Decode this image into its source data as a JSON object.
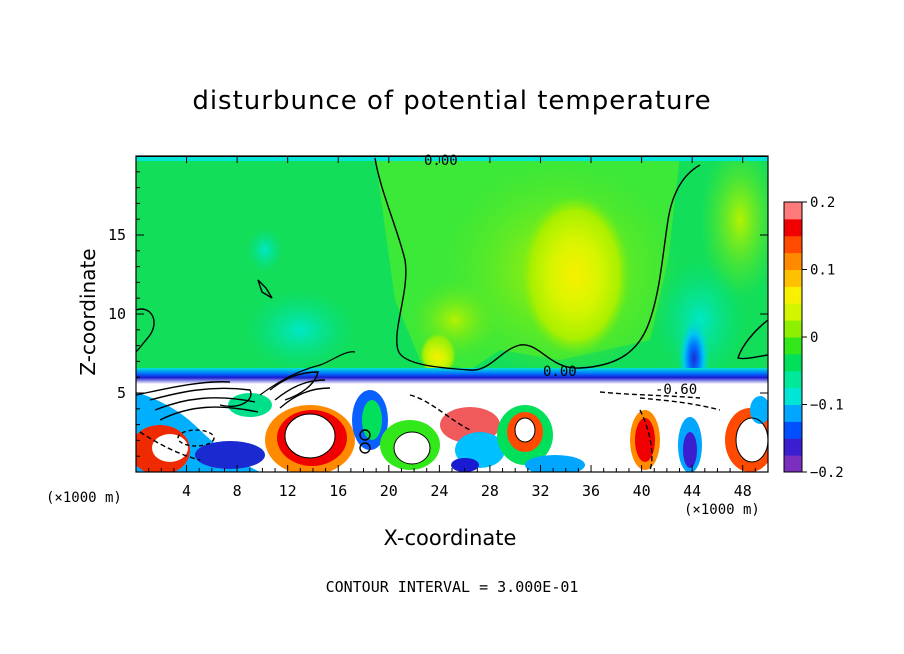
{
  "chart_data": {
    "type": "heatmap",
    "title": "disturbunce of potential temperature",
    "xlabel": "X-coordinate",
    "ylabel": "Z-coordinate",
    "x_unit": "(×1000 m)",
    "x_ticks": [
      "4",
      "8",
      "12",
      "16",
      "20",
      "24",
      "28",
      "32",
      "36",
      "40",
      "44",
      "48"
    ],
    "y_ticks": [
      "5",
      "10",
      "15"
    ],
    "xlim": [
      0,
      50
    ],
    "ylim": [
      0,
      20
    ],
    "colorbar": {
      "range": [
        -0.2,
        0.2
      ],
      "ticks": [
        "0.2",
        "0.1",
        "0",
        "−0.1",
        "−0.2"
      ],
      "colors": [
        "#7b2fbf",
        "#3a1ed0",
        "#0050ff",
        "#00a6ff",
        "#00e5d5",
        "#00e89a",
        "#00e05a",
        "#33e81a",
        "#8fef00",
        "#d2f500",
        "#f7f000",
        "#ffc000",
        "#ff8a00",
        "#ff4a00",
        "#f00000",
        "#ff7a7a"
      ]
    },
    "contour_labels": [
      "0.00",
      "0.00",
      "-0.60"
    ],
    "contour_interval": "CONTOUR INTERVAL = 3.000E-01"
  }
}
